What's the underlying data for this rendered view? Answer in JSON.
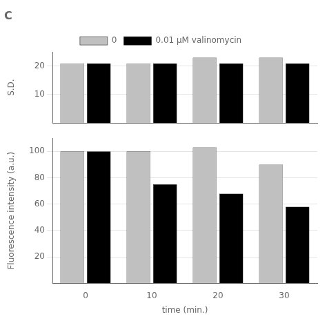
{
  "chart_data": [
    {
      "type": "bar",
      "title": "C",
      "categories": [
        "0",
        "10",
        "20",
        "30"
      ],
      "series": [
        {
          "name": "0",
          "color": "#c0c0c0",
          "values": [
            21,
            21,
            23,
            23
          ]
        },
        {
          "name": "0.01 μM valinomycin",
          "color": "#000000",
          "values": [
            21,
            21,
            21,
            21
          ]
        }
      ],
      "ylabel": "S.D.",
      "ylim": [
        0,
        25
      ],
      "yticks": [
        10,
        20
      ],
      "grid": true,
      "legend": "top",
      "tick_labels": "y"
    },
    {
      "type": "bar",
      "categories": [
        "0",
        "10",
        "20",
        "30"
      ],
      "series": [
        {
          "name": "0",
          "color": "#c0c0c0",
          "values": [
            100,
            100,
            103,
            90
          ]
        },
        {
          "name": "0.01 μM valinomycin",
          "color": "#000000",
          "values": [
            100,
            75,
            68,
            58
          ]
        }
      ],
      "xlabel": "time (min.)",
      "ylabel": "Fluorescence intensity (a.u.)",
      "ylim": [
        0,
        110
      ],
      "yticks": [
        20,
        40,
        60,
        80,
        100
      ],
      "grid": true
    }
  ]
}
